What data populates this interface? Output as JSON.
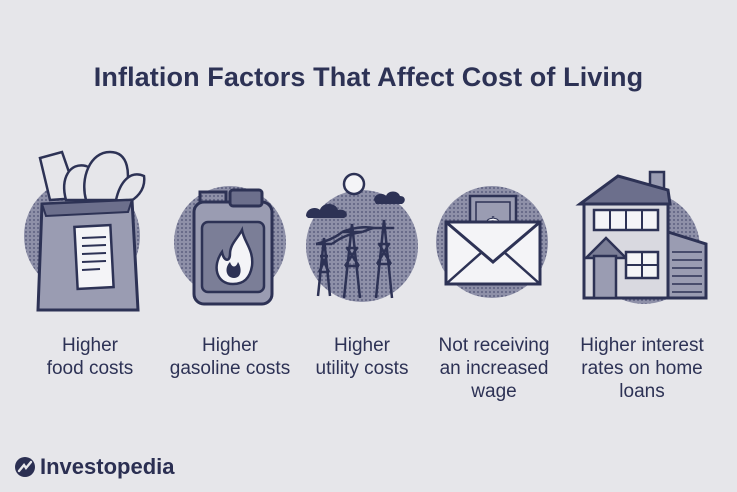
{
  "title": "Inflation Factors That Affect Cost of Living",
  "factors": [
    {
      "icon": "grocery-bag-icon",
      "label": "Higher\nfood costs"
    },
    {
      "icon": "gas-can-icon",
      "label": "Higher\ngasoline costs"
    },
    {
      "icon": "power-lines-icon",
      "label": "Higher\nutility costs"
    },
    {
      "icon": "envelope-money-icon",
      "label": "Not receiving\nan increased\nwage"
    },
    {
      "icon": "house-icon",
      "label": "Higher interest\nrates on home\nloans"
    }
  ],
  "brand": {
    "name": "Investopedia",
    "icon": "investopedia-logo-icon"
  },
  "colors": {
    "background": "#e6e6ea",
    "ink": "#2d3255",
    "circle": "#7b7e97"
  }
}
